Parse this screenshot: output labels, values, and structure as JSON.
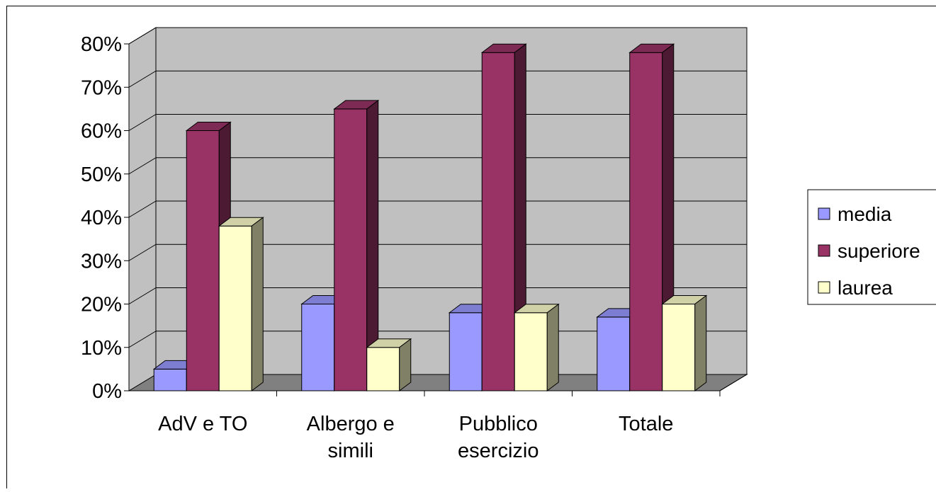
{
  "chart_data": {
    "type": "bar",
    "title": "",
    "xlabel": "",
    "ylabel": "",
    "categories": [
      [
        "AdV e TO"
      ],
      [
        "Albergo e",
        "simili"
      ],
      [
        "Pubblico",
        "esercizio"
      ],
      [
        "Totale"
      ]
    ],
    "series": [
      {
        "name": "media",
        "values": [
          5,
          20,
          18,
          17
        ],
        "color": "#9999ff"
      },
      {
        "name": "superiore",
        "values": [
          60,
          65,
          78,
          78
        ],
        "color": "#993366"
      },
      {
        "name": "laurea",
        "values": [
          38,
          10,
          18,
          20
        ],
        "color": "#ffffcc"
      }
    ],
    "ylim": [
      0,
      80
    ],
    "y_ticks": [
      "0%",
      "10%",
      "20%",
      "30%",
      "40%",
      "50%",
      "60%",
      "70%",
      "80%"
    ],
    "grid": true,
    "legend_position": "right",
    "style": "3d-clustered-column",
    "wall_color": "#c0c0c0",
    "floor_color": "#808080"
  }
}
